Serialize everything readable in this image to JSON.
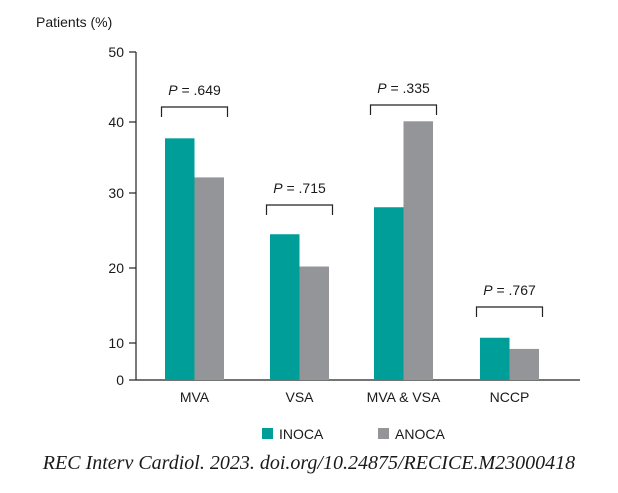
{
  "chart_data": {
    "type": "bar",
    "ylabel": "Patients (%)",
    "xlabel": "",
    "ylim": [
      0,
      50
    ],
    "yticks": [
      0,
      10,
      20,
      30,
      40,
      50
    ],
    "y_axis_note": "0–10 segment drawn compressed (half height)",
    "categories": [
      "MVA",
      "VSA",
      "MVA & VSA",
      "NCCP"
    ],
    "series": [
      {
        "name": "INOCA",
        "color": "#009e99",
        "values": [
          37.7,
          24.5,
          28.1,
          10.7
        ]
      },
      {
        "name": "ANOCA",
        "color": "#939598",
        "values": [
          32.2,
          20.2,
          40.1,
          8.4
        ]
      }
    ],
    "annotations": [
      {
        "p": "P",
        "text": " = .649"
      },
      {
        "p": "P",
        "text": " = .715"
      },
      {
        "p": "P",
        "text": " = .335"
      },
      {
        "p": "P",
        "text": " = .767"
      }
    ],
    "legend_position": "bottom",
    "grid": false
  },
  "caption": "REC Interv Cardiol. 2023. doi.org/10.24875/RECICE.M23000418"
}
